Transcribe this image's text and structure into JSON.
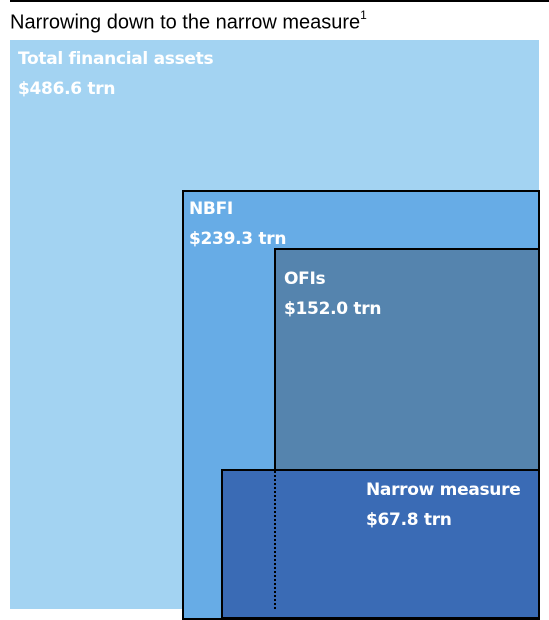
{
  "chart_data": {
    "type": "nested-area",
    "title": "Narrowing down to the narrow measure",
    "title_footnote": "1",
    "unit": "trn",
    "series": [
      {
        "name": "Total financial assets",
        "value": 486.6,
        "value_label": "$486.6 trn",
        "color": "#a3d3f2"
      },
      {
        "name": "NBFI",
        "value": 239.3,
        "value_label": "$239.3 trn",
        "color": "#67ace6"
      },
      {
        "name": "OFIs",
        "value": 152.0,
        "value_label": "$152.0 trn",
        "color": "#5584ae"
      },
      {
        "name": "Narrow measure",
        "value": 67.8,
        "value_label": "$67.8 trn",
        "color": "#3a6bb5"
      }
    ]
  }
}
